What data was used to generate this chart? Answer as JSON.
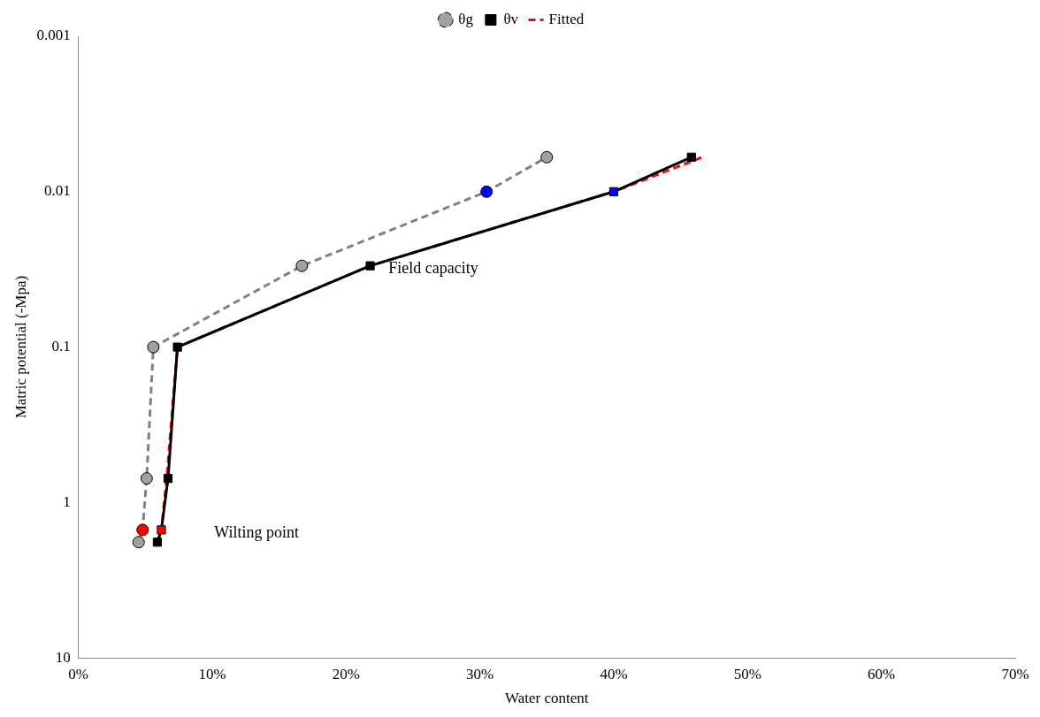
{
  "chart_data": {
    "type": "line",
    "xlabel": "Water content",
    "ylabel": "Matric potential (-Mpa)",
    "log": "y",
    "xlim": [
      0,
      70
    ],
    "xticks": [
      {
        "value": 0,
        "label": "0%"
      },
      {
        "value": 10,
        "label": "10%"
      },
      {
        "value": 20,
        "label": "20%"
      },
      {
        "value": 30,
        "label": "30%"
      },
      {
        "value": 40,
        "label": "40%"
      },
      {
        "value": 50,
        "label": "50%"
      },
      {
        "value": 60,
        "label": "60%"
      },
      {
        "value": 70,
        "label": "70%"
      }
    ],
    "ylim": [
      10,
      0.001
    ],
    "yticks": [
      0.001,
      0.01,
      0.1,
      1,
      10
    ],
    "grid": false,
    "legend": "top",
    "series": [
      {
        "name": "θg",
        "color": "#808080",
        "line_style": "dashed",
        "marker": "circle",
        "x": [
          4.5,
          4.8,
          5.1,
          5.6,
          16.7,
          30.5,
          35.0
        ],
        "values": [
          1.8,
          1.5,
          0.7,
          0.1,
          0.03,
          0.01,
          0.006
        ],
        "colors": [
          "#a0a0a0",
          "#ff0000",
          "#a0a0a0",
          "#a0a0a0",
          "#a0a0a0",
          "#0000ff",
          "#a0a0a0"
        ]
      },
      {
        "name": "θv",
        "color": "#000000",
        "line_style": "solid",
        "marker": "square",
        "x": [
          5.9,
          6.2,
          6.7,
          7.4,
          21.8,
          40.0,
          45.8
        ],
        "values": [
          1.8,
          1.5,
          0.7,
          0.1,
          0.03,
          0.01,
          0.006
        ],
        "colors": [
          "#000000",
          "#ff0000",
          "#000000",
          "#000000",
          "#000000",
          "#0000ff",
          "#000000"
        ]
      },
      {
        "name": "Fitted",
        "color": "#ff0000",
        "line_style": "dashed",
        "marker": "none",
        "x": [
          5.9,
          6.2,
          6.6,
          7.4,
          21.8,
          40.0,
          46.6
        ],
        "values": [
          1.8,
          1.5,
          0.7,
          0.1,
          0.03,
          0.01,
          0.006
        ]
      }
    ],
    "annotations": [
      "Wilting point",
      "Field capacity"
    ]
  }
}
